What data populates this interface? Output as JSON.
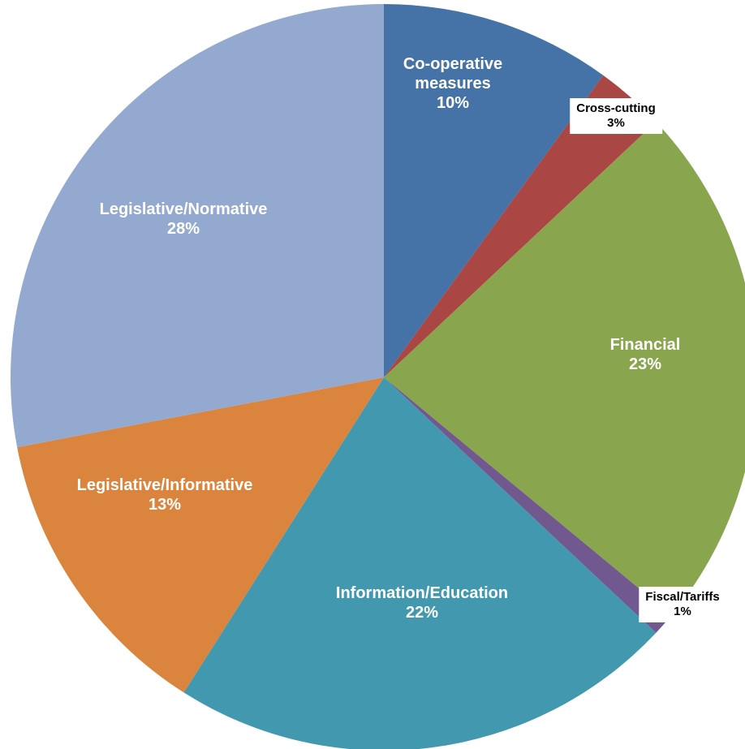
{
  "chart_data": {
    "type": "pie",
    "categories": [
      "Co-operative measures",
      "Cross-cutting",
      "Financial",
      "Fiscal/Tariffs",
      "Information/Education",
      "Legislative/Informative",
      "Legislative/Normative"
    ],
    "values": [
      10,
      3,
      23,
      1,
      22,
      13,
      28
    ],
    "value_labels": [
      "10%",
      "3%",
      "23%",
      "1%",
      "22%",
      "13%",
      "28%"
    ],
    "colors": [
      "#4572a7",
      "#aa4643",
      "#89a54e",
      "#71588f",
      "#4198af",
      "#db843d",
      "#93a9cf"
    ]
  }
}
